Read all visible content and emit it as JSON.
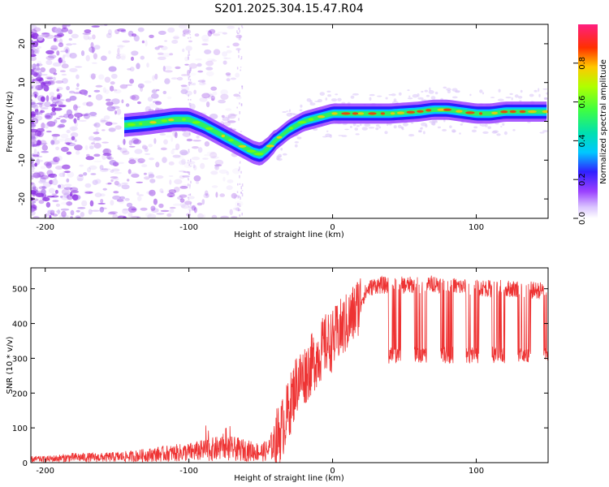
{
  "title": "S201.2025.304.15.47.R04",
  "colors": {
    "snr_line": "#ee3333",
    "frame": "#000000",
    "cloud": "#8a2be2"
  },
  "chart_data": [
    {
      "type": "heatmap",
      "name": "spectrogram",
      "xlabel": "Height of straight line (km)",
      "ylabel": "Frequency (Hz)",
      "xlim": [
        -210,
        150
      ],
      "ylim": [
        -25,
        25
      ],
      "xticks": [
        -200,
        -100,
        0,
        100
      ],
      "yticks": [
        -20,
        -10,
        0,
        10,
        20
      ],
      "ridge_centre_trace": {
        "x": [
          -145,
          -130,
          -120,
          -110,
          -100,
          -90,
          -80,
          -70,
          -60,
          -55,
          -50,
          -45,
          -40,
          -30,
          -20,
          -10,
          0,
          20,
          40,
          60,
          70,
          80,
          90,
          100,
          110,
          120,
          150
        ],
        "y": [
          -1,
          -0.5,
          0,
          0.5,
          0.5,
          -1,
          -3,
          -5,
          -7,
          -8,
          -8.5,
          -7,
          -5,
          -2,
          0,
          1,
          2,
          2,
          2,
          2.5,
          3,
          3,
          2.5,
          2,
          2,
          2.5,
          2.5
        ]
      },
      "colorbar": {
        "label": "Normalized spectral amplitude",
        "min": 0.0,
        "max": 1.0,
        "ticks": [
          "0.0",
          "0.2",
          "0.4",
          "0.6",
          "0.8"
        ]
      }
    },
    {
      "type": "line",
      "name": "snr",
      "xlabel": "Height of straight line (km)",
      "ylabel": "SNR (10 * v/v)",
      "xlim": [
        -210,
        150
      ],
      "ylim": [
        0,
        560
      ],
      "xticks": [
        -200,
        -100,
        0,
        100
      ],
      "yticks": [
        0,
        100,
        200,
        300,
        400,
        500
      ],
      "series": [
        {
          "name": "SNR",
          "x": [
            -210,
            -200,
            -180,
            -160,
            -140,
            -120,
            -100,
            -90,
            -80,
            -70,
            -60,
            -50,
            -45,
            -40,
            -35,
            -30,
            -25,
            -20,
            -15,
            -10,
            -5,
            0,
            5,
            10,
            15,
            20,
            25,
            30,
            40,
            50,
            60,
            70,
            80,
            90,
            100,
            110,
            120,
            130,
            140,
            150
          ],
          "y": [
            10,
            10,
            15,
            15,
            18,
            25,
            30,
            35,
            40,
            40,
            35,
            30,
            35,
            60,
            100,
            160,
            230,
            250,
            280,
            310,
            340,
            350,
            380,
            400,
            430,
            470,
            500,
            510,
            510,
            510,
            510,
            515,
            510,
            505,
            505,
            500,
            500,
            500,
            495,
            495
          ]
        }
      ],
      "dropout_level": 300
    }
  ]
}
